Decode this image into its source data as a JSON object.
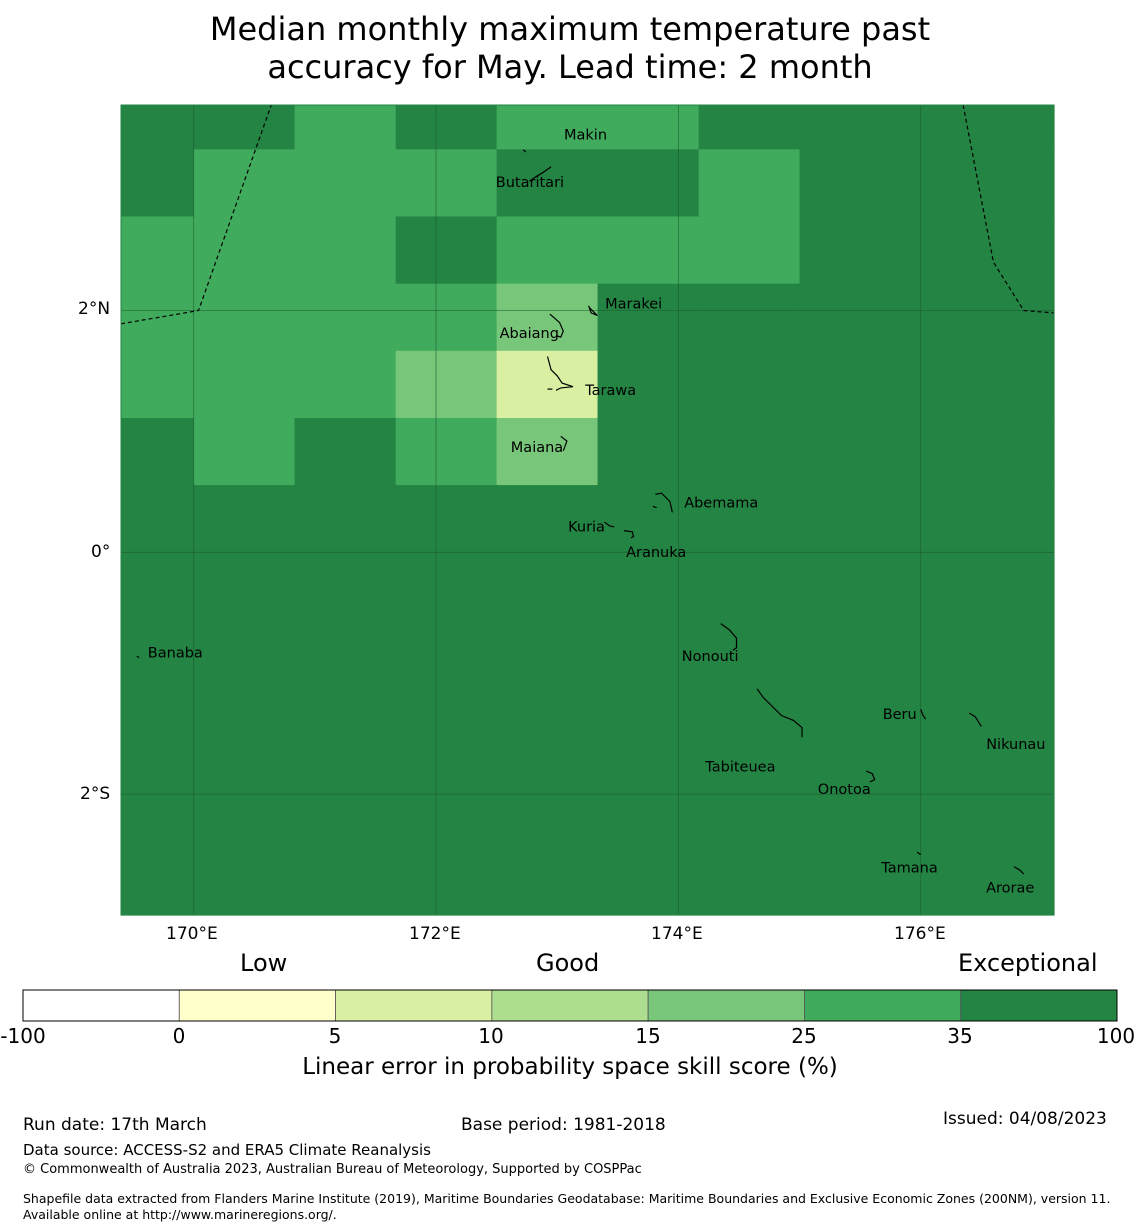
{
  "title": {
    "line1": "Median monthly maximum temperature past",
    "line2": "accuracy for May. Lead time: 2 month"
  },
  "map": {
    "lat_ticks": [
      "2°N",
      "0°",
      "2°S"
    ],
    "lon_ticks": [
      "170°E",
      "172°E",
      "174°E",
      "176°E"
    ],
    "extent": {
      "lon": [
        169.4,
        177.1
      ],
      "lat": [
        -3.0,
        3.7
      ]
    },
    "grid": {
      "lon_edges": [
        169.4,
        170.0,
        170.833,
        171.667,
        172.5,
        173.333,
        174.167,
        175.0,
        176.0,
        177.1
      ],
      "lat_edges": [
        3.7,
        3.333,
        2.778,
        2.222,
        1.667,
        1.111,
        0.556,
        -3.0
      ],
      "categories": [
        [
          6,
          6,
          5,
          6,
          5,
          5,
          6,
          6,
          6
        ],
        [
          6,
          5,
          5,
          5,
          6,
          6,
          5,
          6,
          6
        ],
        [
          5,
          5,
          5,
          6,
          5,
          5,
          5,
          6,
          6
        ],
        [
          5,
          5,
          5,
          5,
          4,
          6,
          6,
          6,
          6
        ],
        [
          5,
          5,
          5,
          4,
          2,
          6,
          6,
          6,
          6
        ],
        [
          6,
          5,
          6,
          5,
          4,
          6,
          6,
          6,
          6
        ],
        [
          6,
          6,
          6,
          6,
          6,
          6,
          6,
          6,
          6
        ]
      ]
    },
    "islands": [
      {
        "name": "Makin",
        "lon": 172.99,
        "lat": 3.38
      },
      {
        "name": "Butaritari",
        "lon": 172.79,
        "lat": 3.07
      },
      {
        "name": "Marakei",
        "lon": 173.28,
        "lat": 2.0
      },
      {
        "name": "Abaiang",
        "lon": 172.97,
        "lat": 1.84
      },
      {
        "name": "Tarawa",
        "lon": 173.0,
        "lat": 1.45
      },
      {
        "name": "Maiana",
        "lon": 173.03,
        "lat": 0.93
      },
      {
        "name": "Abemama",
        "lon": 173.85,
        "lat": 0.42
      },
      {
        "name": "Kuria",
        "lon": 173.42,
        "lat": 0.23
      },
      {
        "name": "Aranuka",
        "lon": 173.61,
        "lat": 0.17
      },
      {
        "name": "Nonouti",
        "lon": 174.4,
        "lat": -0.65
      },
      {
        "name": "Banaba",
        "lon": 169.53,
        "lat": -0.86
      },
      {
        "name": "Tabiteuea",
        "lon": 174.8,
        "lat": -1.3
      },
      {
        "name": "Beru",
        "lon": 176.0,
        "lat": -1.33
      },
      {
        "name": "Nikunau",
        "lon": 176.45,
        "lat": -1.37
      },
      {
        "name": "Onotoa",
        "lon": 175.58,
        "lat": -1.85
      },
      {
        "name": "Tamana",
        "lon": 175.98,
        "lat": -2.5
      },
      {
        "name": "Arorae",
        "lon": 176.82,
        "lat": -2.64
      }
    ],
    "island_labels": [
      "Makin",
      "Butaritari",
      "Marakei",
      "Abaiang",
      "Tarawa",
      "Maiana",
      "Abemama",
      "Kuria",
      "Aranuka",
      "Nonouti",
      "Banaba",
      "Tabiteuea",
      "Beru",
      "Nikunau",
      "Onotoa",
      "Tamana",
      "Arorae"
    ]
  },
  "colorbar": {
    "category_labels": [
      "Low",
      "Good",
      "Exceptional"
    ],
    "ticks": [
      "-100",
      "0",
      "5",
      "10",
      "15",
      "25",
      "35",
      "100"
    ],
    "colors": [
      "#ffffff",
      "#ffffcc",
      "#d9f0a3",
      "#addd8e",
      "#78c679",
      "#41ab5d",
      "#238443"
    ],
    "label": "Linear error in probability space skill score (%)"
  },
  "footer": {
    "run_date": "Run date: 17th March",
    "base_period": "Base period: 1981-2018",
    "issued": "Issued: 04/08/2023",
    "data_source": "Data source: ACCESS-S2 and ERA5 Climate Reanalysis",
    "copyright": "© Commonwealth of Australia 2023, Australian Bureau of Meteorology, Supported by COSPPac",
    "shapefile": "Shapefile data extracted from Flanders Marine Institute (2019), Maritime Boundaries Geodatabase: Maritime Boundaries and Exclusive Economic Zones (200NM), version 11. Available online at http://www.marineregions.org/."
  }
}
